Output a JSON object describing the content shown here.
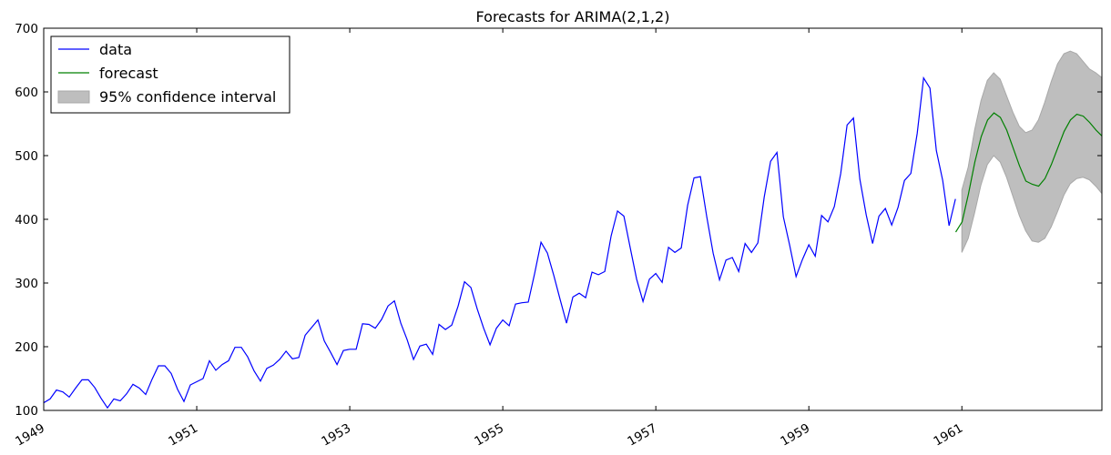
{
  "chart_data": {
    "type": "line",
    "title": "Forecasts for ARIMA(2,1,2)",
    "xlabel": "",
    "ylabel": "",
    "xlim": [
      1949.0,
      1962.83
    ],
    "ylim": [
      100,
      700
    ],
    "grid": false,
    "legend_position": "top-left",
    "x_ticks": [
      1949,
      1951,
      1953,
      1955,
      1957,
      1959,
      1961
    ],
    "x_tick_labels": [
      "1949",
      "1951",
      "1953",
      "1955",
      "1957",
      "1959",
      "1961"
    ],
    "y_ticks": [
      100,
      200,
      300,
      400,
      500,
      600,
      700
    ],
    "y_tick_labels": [
      "100",
      "200",
      "300",
      "400",
      "500",
      "600",
      "700"
    ],
    "series": [
      {
        "name": "data",
        "color": "#0000ff",
        "x_start": 1949.0,
        "x_step": 0.08333,
        "values": [
          112,
          118,
          132,
          129,
          121,
          135,
          148,
          148,
          136,
          119,
          104,
          118,
          115,
          126,
          141,
          135,
          125,
          149,
          170,
          170,
          158,
          133,
          114,
          140,
          145,
          150,
          178,
          163,
          172,
          178,
          199,
          199,
          184,
          162,
          146,
          166,
          171,
          180,
          193,
          181,
          183,
          218,
          230,
          242,
          209,
          191,
          172,
          194,
          196,
          196,
          236,
          235,
          229,
          243,
          264,
          272,
          237,
          211,
          180,
          201,
          204,
          188,
          235,
          227,
          234,
          264,
          302,
          293,
          259,
          229,
          203,
          229,
          242,
          233,
          267,
          269,
          270,
          315,
          364,
          347,
          312,
          274,
          237,
          278,
          284,
          277,
          317,
          313,
          318,
          374,
          413,
          405,
          355,
          306,
          271,
          306,
          315,
          301,
          356,
          348,
          355,
          422,
          465,
          467,
          404,
          347,
          305,
          336,
          340,
          318,
          362,
          348,
          363,
          435,
          491,
          505,
          404,
          359,
          310,
          337,
          360,
          342,
          406,
          396,
          420,
          472,
          548,
          559,
          463,
          407,
          362,
          405,
          417,
          391,
          419,
          461,
          472,
          535,
          622,
          606,
          508,
          461,
          390,
          432
        ]
      },
      {
        "name": "forecast",
        "color": "#008000",
        "x_start": 1960.92,
        "x_step": 0.08333,
        "values": [
          380,
          396,
          440,
          490,
          530,
          556,
          567,
          560,
          540,
          512,
          484,
          460,
          455,
          452,
          464,
          486,
          512,
          538,
          556,
          565,
          562,
          552,
          540,
          530
        ]
      }
    ],
    "confidence_interval": {
      "name": "95% confidence interval",
      "color": "#bebebe",
      "x_start": 1961.0,
      "x_step": 0.08333,
      "lower": [
        348,
        370,
        410,
        454,
        486,
        500,
        490,
        466,
        436,
        406,
        382,
        366,
        364,
        370,
        388,
        412,
        438,
        456,
        464,
        466,
        462,
        452,
        440,
        430
      ],
      "upper": [
        446,
        482,
        540,
        586,
        618,
        630,
        620,
        594,
        568,
        546,
        536,
        540,
        556,
        584,
        616,
        644,
        660,
        664,
        660,
        648,
        636,
        630,
        622,
        614
      ]
    },
    "legend": [
      {
        "label": "data",
        "kind": "line",
        "color": "#0000ff"
      },
      {
        "label": "forecast",
        "kind": "line",
        "color": "#008000"
      },
      {
        "label": "95% confidence interval",
        "kind": "patch",
        "color": "#bebebe"
      }
    ]
  }
}
